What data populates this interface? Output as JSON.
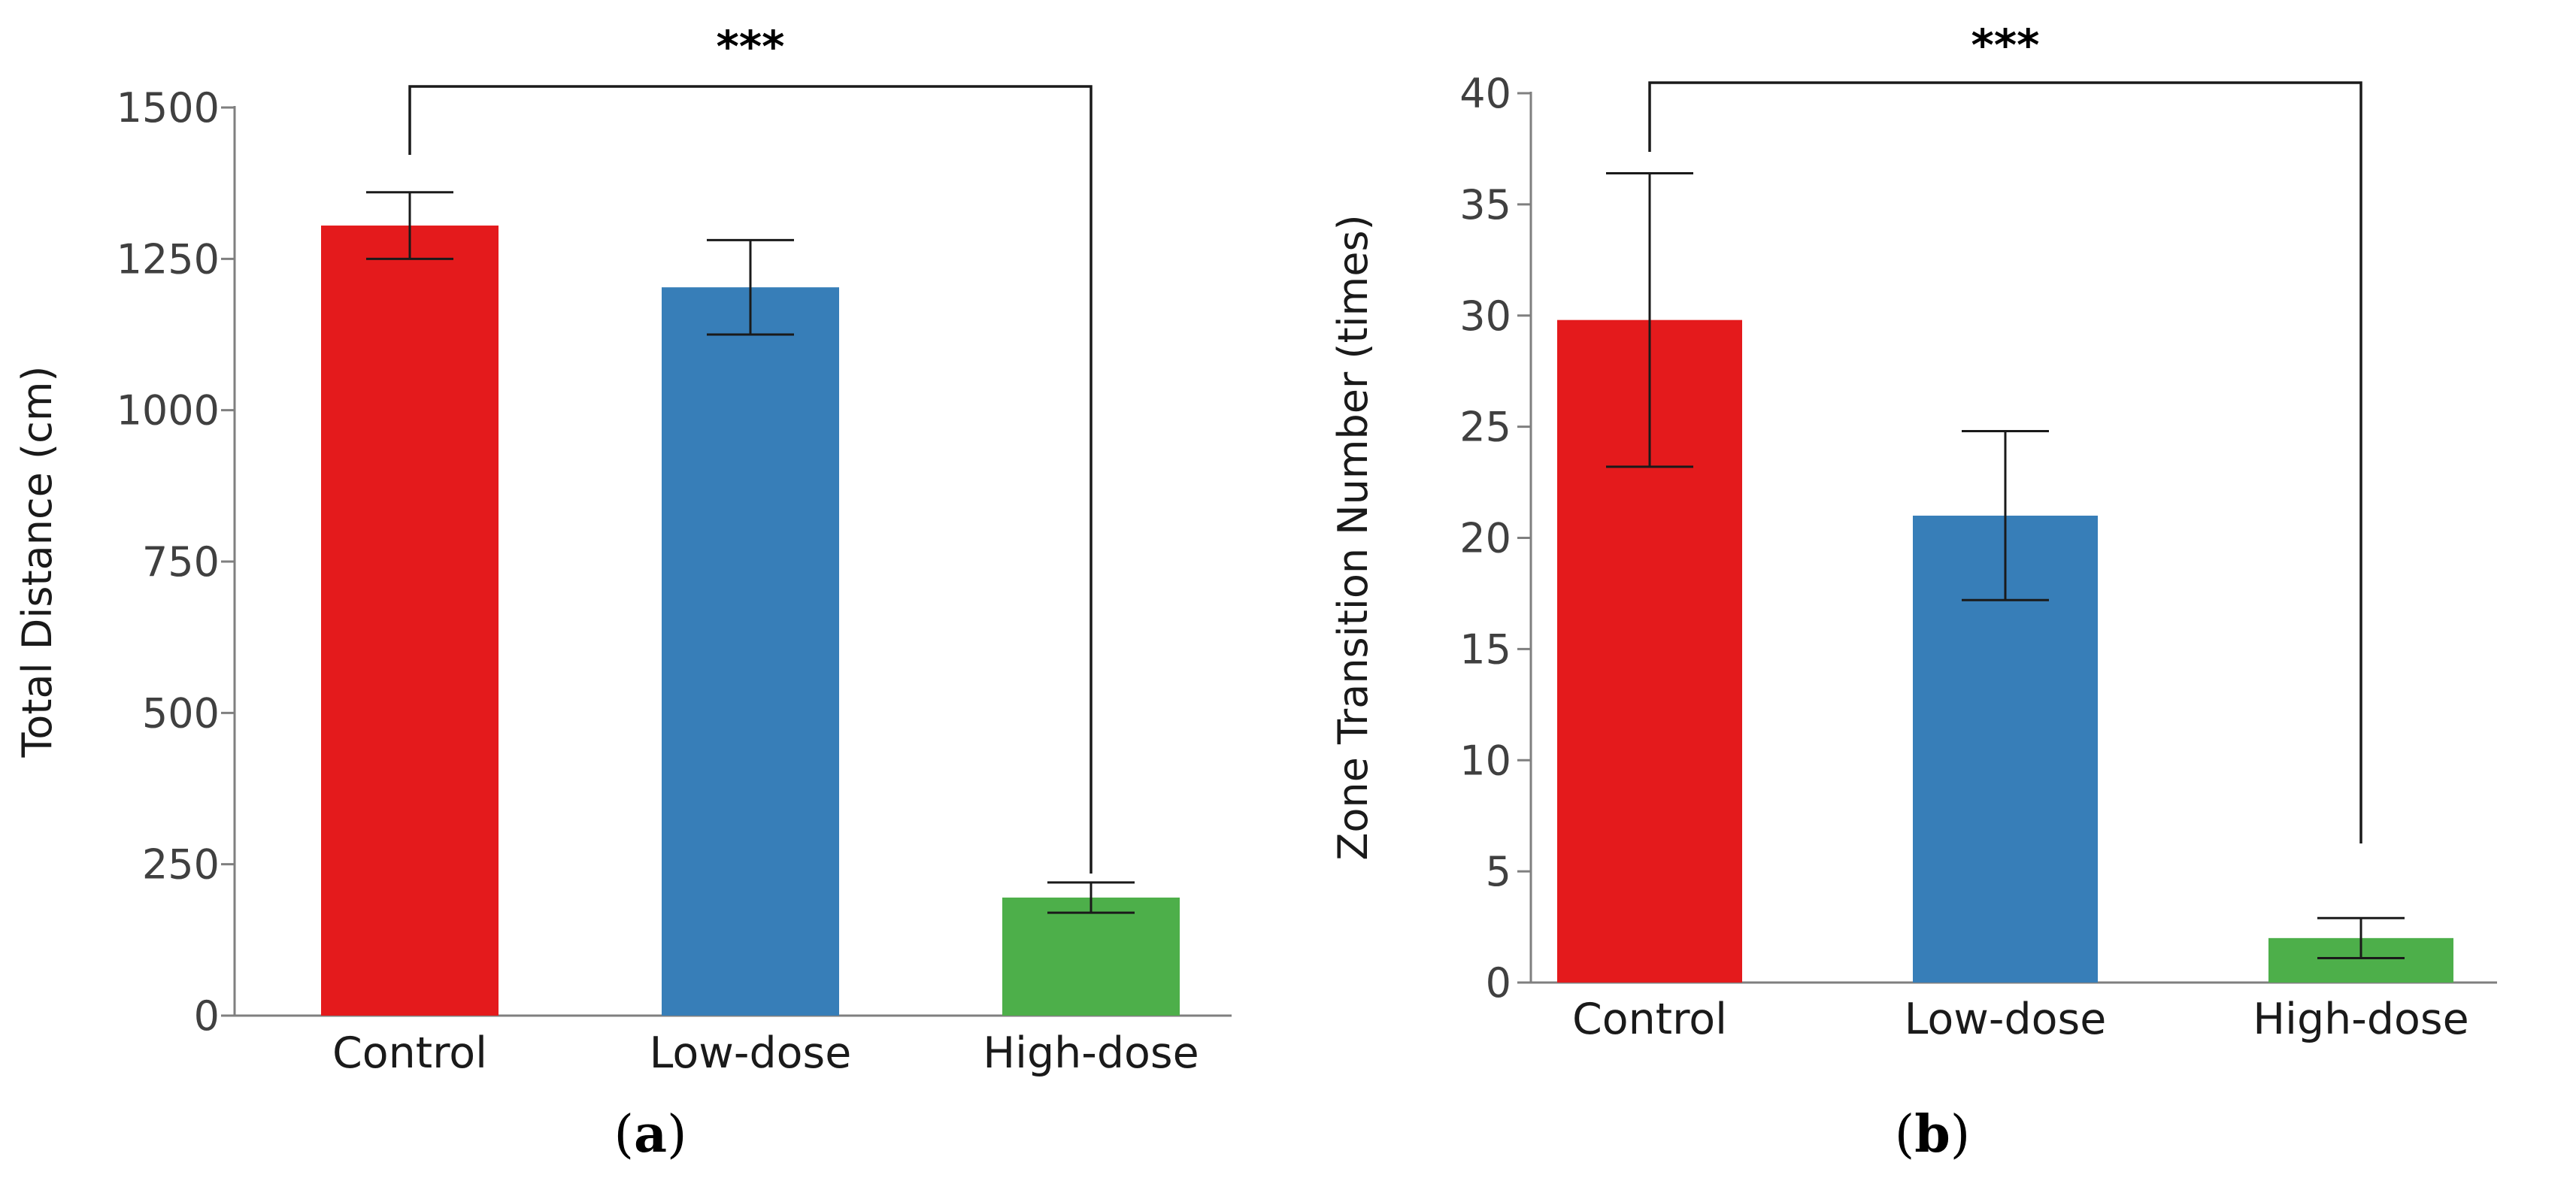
{
  "figure_title": "",
  "chart_data": [
    {
      "type": "bar",
      "panel_label_open": "(",
      "panel_label_letter": "a",
      "panel_label_close": ")",
      "title": "",
      "xlabel": "",
      "ylabel": "Total Distance (cm)",
      "categories": [
        "Control",
        "Low-dose",
        "High-dose"
      ],
      "values": [
        1305,
        1203,
        195
      ],
      "errors": [
        55,
        78,
        25
      ],
      "colors": [
        "#e41a1c",
        "#377eb8",
        "#4daf4a"
      ],
      "ylim": [
        0,
        1500
      ],
      "yticks": [
        0,
        250,
        500,
        750,
        1000,
        1250,
        1500
      ],
      "ytick_labels": [
        "0",
        "250",
        "500",
        "750",
        "1000",
        "1250",
        "1500"
      ],
      "grid": false,
      "significance": {
        "from": "Control",
        "to": "High-dose",
        "label": "***"
      }
    },
    {
      "type": "bar",
      "panel_label_open": "(",
      "panel_label_letter": "b",
      "panel_label_close": ")",
      "title": "",
      "xlabel": "",
      "ylabel": "Zone Transition Number (times)",
      "categories": [
        "Control",
        "Low-dose",
        "High-dose"
      ],
      "values": [
        29.8,
        21.0,
        2.0
      ],
      "errors": [
        6.6,
        3.8,
        0.9
      ],
      "colors": [
        "#e41a1c",
        "#377eb8",
        "#4daf4a"
      ],
      "ylim": [
        0,
        40
      ],
      "yticks": [
        0,
        5,
        10,
        15,
        20,
        25,
        30,
        35,
        40
      ],
      "ytick_labels": [
        "0",
        "5",
        "10",
        "15",
        "20",
        "25",
        "30",
        "35",
        "40"
      ],
      "grid": false,
      "significance": {
        "from": "Control",
        "to": "High-dose",
        "label": "***"
      }
    }
  ]
}
